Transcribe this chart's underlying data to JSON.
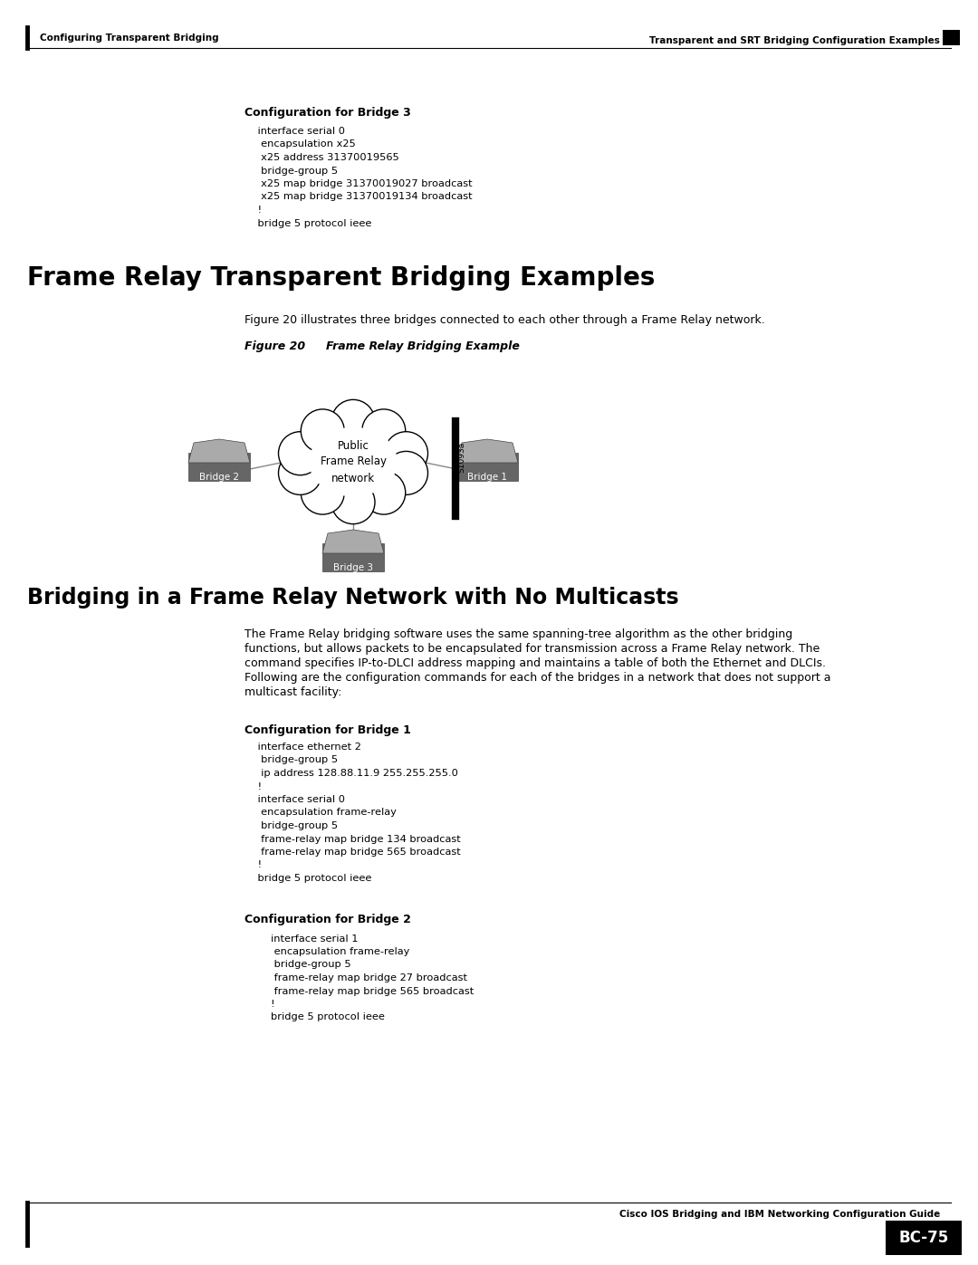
{
  "page_width": 10.8,
  "page_height": 13.97,
  "bg_color": "#ffffff",
  "header_left": "Configuring Transparent Bridging",
  "header_right": "Transparent and SRT Bridging Configuration Examples",
  "footer_center": "Cisco IOS Bridging and IBM Networking Configuration Guide",
  "footer_page": "BC-75",
  "section1_label": "Configuration for Bridge 3",
  "section1_code_lines": [
    "    interface serial 0",
    "     encapsulation x25",
    "     x25 address 31370019565",
    "     bridge-group 5",
    "     x25 map bridge 31370019027 broadcast",
    "     x25 map bridge 31370019134 broadcast",
    "    !",
    "    bridge 5 protocol ieee"
  ],
  "h1_title": "Frame Relay Transparent Bridging Examples",
  "figure_intro": "Figure 20 illustrates three bridges connected to each other through a Frame Relay network.",
  "figure_label": "Figure 20",
  "figure_title": "Frame Relay Bridging Example",
  "s1093a": "S1093a",
  "section2_title": "Bridging in a Frame Relay Network with No Multicasts",
  "section2_body_lines": [
    "The Frame Relay bridging software uses the same spanning-tree algorithm as the other bridging",
    "functions, but allows packets to be encapsulated for transmission across a Frame Relay network. The",
    "command specifies IP-to-DLCI address mapping and maintains a table of both the Ethernet and DLCIs.",
    "Following are the configuration commands for each of the bridges in a network that does not support a",
    "multicast facility:"
  ],
  "section3_label": "Configuration for Bridge 1",
  "section3_code_lines": [
    "    interface ethernet 2",
    "     bridge-group 5",
    "     ip address 128.88.11.9 255.255.255.0",
    "    !",
    "    interface serial 0",
    "     encapsulation frame-relay",
    "     bridge-group 5",
    "     frame-relay map bridge 134 broadcast",
    "     frame-relay map bridge 565 broadcast",
    "    !",
    "    bridge 5 protocol ieee"
  ],
  "section4_label": "Configuration for Bridge 2",
  "section4_code_lines": [
    "        interface serial 1",
    "         encapsulation frame-relay",
    "         bridge-group 5",
    "         frame-relay map bridge 27 broadcast",
    "         frame-relay map bridge 565 broadcast",
    "        !",
    "        bridge 5 protocol ieee"
  ],
  "bridge_body_color": "#666666",
  "bridge_top_color": "#aaaaaa",
  "bridge_edge_color": "#444444",
  "bridge_label_color": "#ffffff",
  "cloud_face": "#ffffff",
  "cloud_edge": "#000000",
  "line_color": "#888888"
}
